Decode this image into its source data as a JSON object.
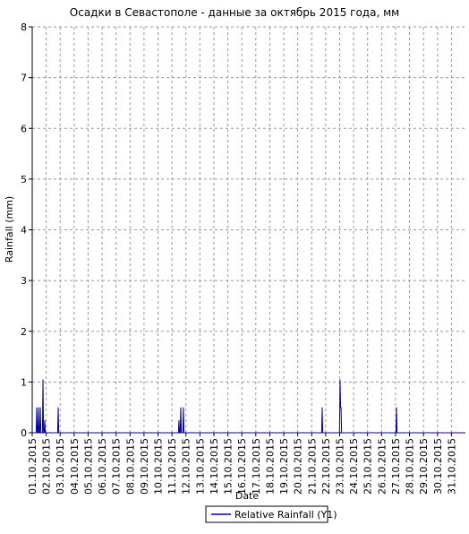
{
  "chart_data": {
    "type": "line",
    "title": "Осадки в Севастополе - данные за октябрь 2015 года, мм",
    "x_label": "Date",
    "y_label": "Rainfall (mm)",
    "xlim": [
      1,
      32
    ],
    "ylim": [
      0,
      8
    ],
    "yticks": [
      0,
      1,
      2,
      3,
      4,
      5,
      6,
      7,
      8
    ],
    "xticks": [
      {
        "value": 1,
        "label": "01.10.2015"
      },
      {
        "value": 2,
        "label": "02.10.2015"
      },
      {
        "value": 3,
        "label": "03.10.2015"
      },
      {
        "value": 4,
        "label": "04.10.2015"
      },
      {
        "value": 5,
        "label": "05.10.2015"
      },
      {
        "value": 6,
        "label": "06.10.2015"
      },
      {
        "value": 7,
        "label": "07.10.2015"
      },
      {
        "value": 8,
        "label": "08.10.2015"
      },
      {
        "value": 9,
        "label": "09.10.2015"
      },
      {
        "value": 10,
        "label": "10.10.2015"
      },
      {
        "value": 11,
        "label": "11.10.2015"
      },
      {
        "value": 12,
        "label": "12.10.2015"
      },
      {
        "value": 13,
        "label": "13.10.2015"
      },
      {
        "value": 14,
        "label": "14.10.2015"
      },
      {
        "value": 15,
        "label": "15.10.2015"
      },
      {
        "value": 16,
        "label": "16.10.2015"
      },
      {
        "value": 17,
        "label": "17.10.2015"
      },
      {
        "value": 18,
        "label": "18.10.2015"
      },
      {
        "value": 19,
        "label": "19.10.2015"
      },
      {
        "value": 20,
        "label": "20.10.2015"
      },
      {
        "value": 21,
        "label": "21.10.2015"
      },
      {
        "value": 22,
        "label": "22.10.2015"
      },
      {
        "value": 23,
        "label": "23.10.2015"
      },
      {
        "value": 24,
        "label": "24.10.2015"
      },
      {
        "value": 25,
        "label": "25.10.2015"
      },
      {
        "value": 26,
        "label": "26.10.2015"
      },
      {
        "value": 27,
        "label": "27.10.2015"
      },
      {
        "value": 28,
        "label": "28.10.2015"
      },
      {
        "value": 29,
        "label": "29.10.2015"
      },
      {
        "value": 30,
        "label": "30.10.2015"
      },
      {
        "value": 31,
        "label": "31.10.2015"
      }
    ],
    "grid": true,
    "legend": "bottom",
    "series": [
      {
        "name": "Relative Rainfall (Y1)",
        "color": "#0000a0",
        "x": [
          1,
          1.28,
          1.32,
          1.36,
          1.41,
          1.45,
          1.49,
          1.54,
          1.58,
          1.62,
          1.73,
          1.77,
          1.81,
          1.86,
          1.9,
          1.94,
          2.82,
          2.86,
          2.9,
          11.46,
          11.5,
          11.54,
          11.59,
          11.63,
          11.67,
          11.78,
          11.82,
          11.86,
          21.71,
          21.75,
          21.79,
          22.99,
          23.03,
          23.07,
          23.1,
          23.14,
          27.03,
          27.07,
          27.11,
          32
        ],
        "values": [
          0,
          0,
          0.5,
          0,
          0,
          0.5,
          0,
          0,
          0.5,
          0,
          0,
          1.05,
          0,
          0,
          0.25,
          0,
          0,
          0.5,
          0,
          0,
          0.25,
          0,
          0,
          0.5,
          0,
          0,
          0.5,
          0,
          0,
          0.5,
          0,
          0,
          1.05,
          0.5,
          0.5,
          0,
          0,
          0.5,
          0,
          0
        ]
      }
    ]
  }
}
